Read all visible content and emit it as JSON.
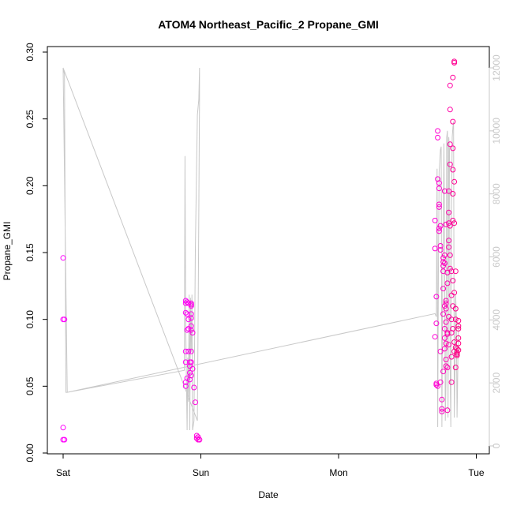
{
  "chart_data": {
    "type": "scatter",
    "title": "ATOM4 Northeast_Pacific_2 Propane_GMI",
    "xlabel": "Date",
    "ylabel": "Propane_GMI",
    "x_ticks": [
      "Sat",
      "Sun",
      "Mon",
      "Tue"
    ],
    "x_range_days": [
      0,
      3.05
    ],
    "ylim": [
      0,
      0.3
    ],
    "y_ticks": [
      "0.00",
      "0.05",
      "0.10",
      "0.15",
      "0.20",
      "0.25",
      "0.30"
    ],
    "y2lim": [
      0,
      12000
    ],
    "y2_ticks": [
      "0",
      "2000",
      "4000",
      "6000",
      "8000",
      "10000",
      "12000"
    ],
    "grid": false,
    "legend": "none",
    "colors": {
      "points_start": "#ff00ff",
      "points_end": "#ff0080",
      "altitude_line": "#c8c8c8"
    },
    "series": [
      {
        "values": [
          [
            0.0,
            0.146
          ],
          [
            0.0,
            0.1
          ],
          [
            0.01,
            0.1
          ],
          [
            0.0,
            0.019
          ],
          [
            0.0,
            0.01
          ],
          [
            0.01,
            0.01
          ],
          [
            0.89,
            0.114
          ],
          [
            0.89,
            0.112
          ],
          [
            0.89,
            0.105
          ],
          [
            0.9,
            0.113
          ],
          [
            0.9,
            0.104
          ],
          [
            0.9,
            0.092
          ],
          [
            0.89,
            0.076
          ],
          [
            0.89,
            0.068
          ],
          [
            0.9,
            0.056
          ],
          [
            0.89,
            0.053
          ],
          [
            0.89,
            0.05
          ],
          [
            0.91,
            0.112
          ],
          [
            0.91,
            0.1
          ],
          [
            0.91,
            0.093
          ],
          [
            0.91,
            0.076
          ],
          [
            0.92,
            0.068
          ],
          [
            0.92,
            0.06
          ],
          [
            0.92,
            0.055
          ],
          [
            0.93,
            0.112
          ],
          [
            0.93,
            0.111
          ],
          [
            0.93,
            0.11
          ],
          [
            0.93,
            0.104
          ],
          [
            0.93,
            0.101
          ],
          [
            0.93,
            0.095
          ],
          [
            0.93,
            0.092
          ],
          [
            0.93,
            0.076
          ],
          [
            0.93,
            0.068
          ],
          [
            0.92,
            0.065
          ],
          [
            0.93,
            0.058
          ],
          [
            0.94,
            0.09
          ],
          [
            0.94,
            0.063
          ],
          [
            0.95,
            0.049
          ],
          [
            0.96,
            0.038
          ],
          [
            0.97,
            0.013
          ],
          [
            0.97,
            0.011
          ],
          [
            0.98,
            0.012
          ],
          [
            0.98,
            0.01
          ],
          [
            0.99,
            0.01
          ],
          [
            2.7,
            0.174
          ],
          [
            2.7,
            0.153
          ],
          [
            2.71,
            0.117
          ],
          [
            2.71,
            0.097
          ],
          [
            2.7,
            0.087
          ],
          [
            2.71,
            0.052
          ],
          [
            2.71,
            0.051
          ],
          [
            2.72,
            0.05
          ],
          [
            2.72,
            0.241
          ],
          [
            2.72,
            0.236
          ],
          [
            2.72,
            0.205
          ],
          [
            2.73,
            0.202
          ],
          [
            2.73,
            0.198
          ],
          [
            2.73,
            0.186
          ],
          [
            2.73,
            0.184
          ],
          [
            2.73,
            0.168
          ],
          [
            2.73,
            0.166
          ],
          [
            2.74,
            0.17
          ],
          [
            2.74,
            0.155
          ],
          [
            2.74,
            0.152
          ],
          [
            2.74,
            0.076
          ],
          [
            2.74,
            0.053
          ],
          [
            2.75,
            0.033
          ],
          [
            2.75,
            0.031
          ],
          [
            2.75,
            0.04
          ],
          [
            2.76,
            0.146
          ],
          [
            2.76,
            0.143
          ],
          [
            2.76,
            0.14
          ],
          [
            2.76,
            0.136
          ],
          [
            2.76,
            0.123
          ],
          [
            2.76,
            0.104
          ],
          [
            2.76,
            0.061
          ],
          [
            2.77,
            0.196
          ],
          [
            2.77,
            0.148
          ],
          [
            2.77,
            0.142
          ],
          [
            2.77,
            0.11
          ],
          [
            2.77,
            0.093
          ],
          [
            2.77,
            0.086
          ],
          [
            2.77,
            0.078
          ],
          [
            2.78,
            0.171
          ],
          [
            2.78,
            0.114
          ],
          [
            2.78,
            0.112
          ],
          [
            2.78,
            0.108
          ],
          [
            2.78,
            0.098
          ],
          [
            2.78,
            0.082
          ],
          [
            2.78,
            0.07
          ],
          [
            2.78,
            0.065
          ],
          [
            2.79,
            0.09
          ],
          [
            2.79,
            0.064
          ],
          [
            2.79,
            0.032
          ],
          [
            2.79,
            0.135
          ],
          [
            2.79,
            0.127
          ],
          [
            2.79,
            0.089
          ],
          [
            2.8,
            0.196
          ],
          [
            2.8,
            0.18
          ],
          [
            2.8,
            0.172
          ],
          [
            2.8,
            0.159
          ],
          [
            2.8,
            0.154
          ],
          [
            2.8,
            0.081
          ],
          [
            2.8,
            0.102
          ],
          [
            2.81,
            0.257
          ],
          [
            2.81,
            0.275
          ],
          [
            2.81,
            0.231
          ],
          [
            2.81,
            0.216
          ],
          [
            2.81,
            0.17
          ],
          [
            2.81,
            0.148
          ],
          [
            2.81,
            0.138
          ],
          [
            2.82,
            0.136
          ],
          [
            2.82,
            0.118
          ],
          [
            2.82,
            0.1
          ],
          [
            2.82,
            0.09
          ],
          [
            2.82,
            0.072
          ],
          [
            2.82,
            0.053
          ],
          [
            2.83,
            0.281
          ],
          [
            2.83,
            0.248
          ],
          [
            2.83,
            0.228
          ],
          [
            2.83,
            0.212
          ],
          [
            2.83,
            0.194
          ],
          [
            2.83,
            0.174
          ],
          [
            2.83,
            0.129
          ],
          [
            2.83,
            0.11
          ],
          [
            2.83,
            0.093
          ],
          [
            2.84,
            0.292
          ],
          [
            2.84,
            0.293
          ],
          [
            2.84,
            0.203
          ],
          [
            2.84,
            0.172
          ],
          [
            2.84,
            0.12
          ],
          [
            2.84,
            0.083
          ],
          [
            2.84,
            0.076
          ],
          [
            2.85,
            0.136
          ],
          [
            2.85,
            0.108
          ],
          [
            2.85,
            0.1
          ],
          [
            2.85,
            0.064
          ],
          [
            2.85,
            0.079
          ],
          [
            2.86,
            0.078
          ],
          [
            2.86,
            0.075
          ],
          [
            2.86,
            0.074
          ],
          [
            2.86,
            0.073
          ],
          [
            2.87,
            0.099
          ],
          [
            2.87,
            0.095
          ],
          [
            2.87,
            0.093
          ],
          [
            2.87,
            0.086
          ],
          [
            2.87,
            0.082
          ],
          [
            2.87,
            0.077
          ]
        ]
      }
    ],
    "altitude_line": [
      [
        0.0,
        12000
      ],
      [
        0.01,
        11800
      ],
      [
        0.02,
        1700
      ],
      [
        0.03,
        1700
      ],
      [
        0.88,
        2400
      ],
      [
        0.885,
        9200
      ],
      [
        0.89,
        3800
      ],
      [
        0.9,
        500
      ],
      [
        0.905,
        2800
      ],
      [
        0.91,
        1400
      ],
      [
        0.915,
        4800
      ],
      [
        0.92,
        500
      ],
      [
        0.925,
        4700
      ],
      [
        0.93,
        3000
      ],
      [
        0.935,
        4800
      ],
      [
        0.94,
        500
      ],
      [
        0.95,
        800
      ],
      [
        0.96,
        6200
      ],
      [
        0.97,
        9200
      ],
      [
        0.975,
        10500
      ],
      [
        0.985,
        11000
      ],
      [
        0.99,
        12000
      ],
      [
        0.99,
        11000
      ],
      [
        0.98,
        3900
      ],
      [
        0.975,
        800
      ],
      [
        0.0,
        12000
      ],
      [
        0.03,
        1700
      ],
      [
        2.7,
        4200
      ],
      [
        2.71,
        4100
      ],
      [
        2.715,
        8800
      ],
      [
        2.72,
        600
      ],
      [
        2.725,
        5600
      ],
      [
        2.73,
        8700
      ],
      [
        2.74,
        9400
      ],
      [
        2.745,
        9500
      ],
      [
        2.75,
        600
      ],
      [
        2.755,
        4500
      ],
      [
        2.76,
        6700
      ],
      [
        2.765,
        9600
      ],
      [
        2.77,
        5800
      ],
      [
        2.775,
        800
      ],
      [
        2.78,
        2100
      ],
      [
        2.785,
        9800
      ],
      [
        2.79,
        10000
      ],
      [
        2.795,
        900
      ],
      [
        2.8,
        9800
      ],
      [
        2.805,
        9400
      ],
      [
        2.81,
        2600
      ],
      [
        2.815,
        600
      ],
      [
        2.82,
        7400
      ],
      [
        2.825,
        9800
      ],
      [
        2.83,
        10100
      ],
      [
        2.835,
        10300
      ],
      [
        2.84,
        900
      ],
      [
        2.845,
        2400
      ],
      [
        2.85,
        4800
      ],
      [
        2.855,
        4100
      ],
      [
        2.86,
        900
      ],
      [
        2.865,
        2200
      ],
      [
        2.87,
        3900
      ]
    ]
  }
}
